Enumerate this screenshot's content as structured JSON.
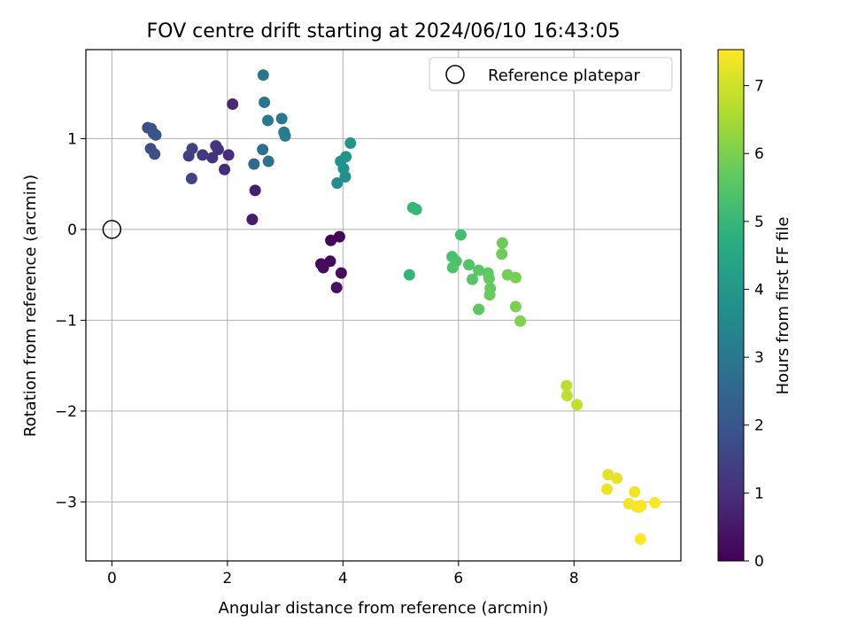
{
  "chart_data": {
    "type": "scatter",
    "title": "FOV centre drift starting at 2024/06/10 16:43:05",
    "xlabel": "Angular distance from reference (arcmin)",
    "ylabel": "Rotation from reference (arcmin)",
    "xlim": [
      -0.45,
      9.85
    ],
    "ylim": [
      -3.65,
      1.98
    ],
    "xticks": [
      0,
      2,
      4,
      6,
      8
    ],
    "xtick_labels": [
      "0",
      "2",
      "4",
      "6",
      "8"
    ],
    "yticks": [
      1,
      0,
      -1,
      -2,
      -3
    ],
    "ytick_labels": [
      "1",
      "0",
      "−1",
      "−2",
      "−3"
    ],
    "grid": true,
    "legend": {
      "position": "top-right",
      "entries": [
        "Reference platepar"
      ]
    },
    "colorbar": {
      "label": "Hours from first FF file",
      "colormap": "viridis",
      "range": [
        0,
        7.53
      ],
      "ticks": [
        0,
        1,
        2,
        3,
        4,
        5,
        6,
        7
      ],
      "tick_labels": [
        "0",
        "1",
        "2",
        "3",
        "4",
        "5",
        "6",
        "7"
      ]
    },
    "reference_point": {
      "x": 0,
      "y": 0,
      "label": "Reference platepar"
    },
    "points": [
      {
        "x": 3.79,
        "y": -0.12,
        "t": 0.05
      },
      {
        "x": 3.94,
        "y": -0.08,
        "t": 0.1
      },
      {
        "x": 3.62,
        "y": -0.38,
        "t": 0.15
      },
      {
        "x": 3.78,
        "y": -0.35,
        "t": 0.2
      },
      {
        "x": 3.66,
        "y": -0.42,
        "t": 0.25
      },
      {
        "x": 3.97,
        "y": -0.48,
        "t": 0.3
      },
      {
        "x": 3.89,
        "y": -0.64,
        "t": 0.35
      },
      {
        "x": 2.43,
        "y": 0.11,
        "t": 0.55
      },
      {
        "x": 2.48,
        "y": 0.43,
        "t": 0.65
      },
      {
        "x": 2.09,
        "y": 1.38,
        "t": 0.85
      },
      {
        "x": 1.95,
        "y": 0.66,
        "t": 0.9
      },
      {
        "x": 2.02,
        "y": 0.82,
        "t": 0.95
      },
      {
        "x": 1.84,
        "y": 0.88,
        "t": 1.05
      },
      {
        "x": 1.74,
        "y": 0.79,
        "t": 1.1
      },
      {
        "x": 1.8,
        "y": 0.92,
        "t": 1.15
      },
      {
        "x": 1.57,
        "y": 0.82,
        "t": 1.25
      },
      {
        "x": 1.33,
        "y": 0.81,
        "t": 1.35
      },
      {
        "x": 1.39,
        "y": 0.89,
        "t": 1.45
      },
      {
        "x": 1.38,
        "y": 0.56,
        "t": 1.5
      },
      {
        "x": 0.67,
        "y": 0.89,
        "t": 1.7
      },
      {
        "x": 0.74,
        "y": 0.83,
        "t": 1.75
      },
      {
        "x": 0.62,
        "y": 1.12,
        "t": 1.8
      },
      {
        "x": 0.68,
        "y": 1.11,
        "t": 1.85
      },
      {
        "x": 0.72,
        "y": 1.06,
        "t": 1.9
      },
      {
        "x": 0.76,
        "y": 1.04,
        "t": 1.95
      },
      {
        "x": 2.46,
        "y": 0.72,
        "t": 2.6
      },
      {
        "x": 2.61,
        "y": 0.88,
        "t": 2.7
      },
      {
        "x": 2.71,
        "y": 0.75,
        "t": 2.8
      },
      {
        "x": 2.62,
        "y": 1.7,
        "t": 2.9
      },
      {
        "x": 2.64,
        "y": 1.4,
        "t": 2.95
      },
      {
        "x": 2.7,
        "y": 1.2,
        "t": 3.0
      },
      {
        "x": 2.94,
        "y": 1.22,
        "t": 3.05
      },
      {
        "x": 2.98,
        "y": 1.07,
        "t": 3.1
      },
      {
        "x": 3.0,
        "y": 1.03,
        "t": 3.15
      },
      {
        "x": 3.9,
        "y": 0.51,
        "t": 3.6
      },
      {
        "x": 4.04,
        "y": 0.58,
        "t": 3.7
      },
      {
        "x": 4.01,
        "y": 0.67,
        "t": 3.75
      },
      {
        "x": 3.96,
        "y": 0.75,
        "t": 3.8
      },
      {
        "x": 4.05,
        "y": 0.8,
        "t": 3.85
      },
      {
        "x": 4.13,
        "y": 0.95,
        "t": 3.9
      },
      {
        "x": 5.15,
        "y": -0.5,
        "t": 4.9
      },
      {
        "x": 5.21,
        "y": 0.24,
        "t": 4.95
      },
      {
        "x": 5.27,
        "y": 0.22,
        "t": 5.0
      },
      {
        "x": 6.04,
        "y": -0.06,
        "t": 5.25
      },
      {
        "x": 5.89,
        "y": -0.3,
        "t": 5.3
      },
      {
        "x": 5.96,
        "y": -0.35,
        "t": 5.35
      },
      {
        "x": 5.9,
        "y": -0.42,
        "t": 5.4
      },
      {
        "x": 6.18,
        "y": -0.39,
        "t": 5.45
      },
      {
        "x": 6.24,
        "y": -0.55,
        "t": 5.5
      },
      {
        "x": 6.35,
        "y": -0.45,
        "t": 5.55
      },
      {
        "x": 6.35,
        "y": -0.88,
        "t": 5.6
      },
      {
        "x": 6.51,
        "y": -0.48,
        "t": 5.65
      },
      {
        "x": 6.53,
        "y": -0.54,
        "t": 5.7
      },
      {
        "x": 6.55,
        "y": -0.65,
        "t": 5.72
      },
      {
        "x": 6.54,
        "y": -0.72,
        "t": 5.75
      },
      {
        "x": 6.76,
        "y": -0.15,
        "t": 5.8
      },
      {
        "x": 6.75,
        "y": -0.27,
        "t": 5.85
      },
      {
        "x": 6.85,
        "y": -0.5,
        "t": 5.9
      },
      {
        "x": 6.99,
        "y": -0.53,
        "t": 5.95
      },
      {
        "x": 6.99,
        "y": -0.85,
        "t": 6.0
      },
      {
        "x": 7.07,
        "y": -1.01,
        "t": 6.05
      },
      {
        "x": 7.87,
        "y": -1.72,
        "t": 6.75
      },
      {
        "x": 7.88,
        "y": -1.83,
        "t": 6.8
      },
      {
        "x": 8.05,
        "y": -1.93,
        "t": 6.85
      },
      {
        "x": 8.59,
        "y": -2.7,
        "t": 7.2
      },
      {
        "x": 8.74,
        "y": -2.74,
        "t": 7.25
      },
      {
        "x": 8.57,
        "y": -2.86,
        "t": 7.3
      },
      {
        "x": 9.05,
        "y": -2.89,
        "t": 7.35
      },
      {
        "x": 8.95,
        "y": -3.02,
        "t": 7.4
      },
      {
        "x": 9.08,
        "y": -3.05,
        "t": 7.42
      },
      {
        "x": 9.12,
        "y": -3.06,
        "t": 7.45
      },
      {
        "x": 9.16,
        "y": -3.04,
        "t": 7.47
      },
      {
        "x": 9.4,
        "y": -3.01,
        "t": 7.5
      },
      {
        "x": 9.15,
        "y": -3.41,
        "t": 7.52
      }
    ]
  }
}
